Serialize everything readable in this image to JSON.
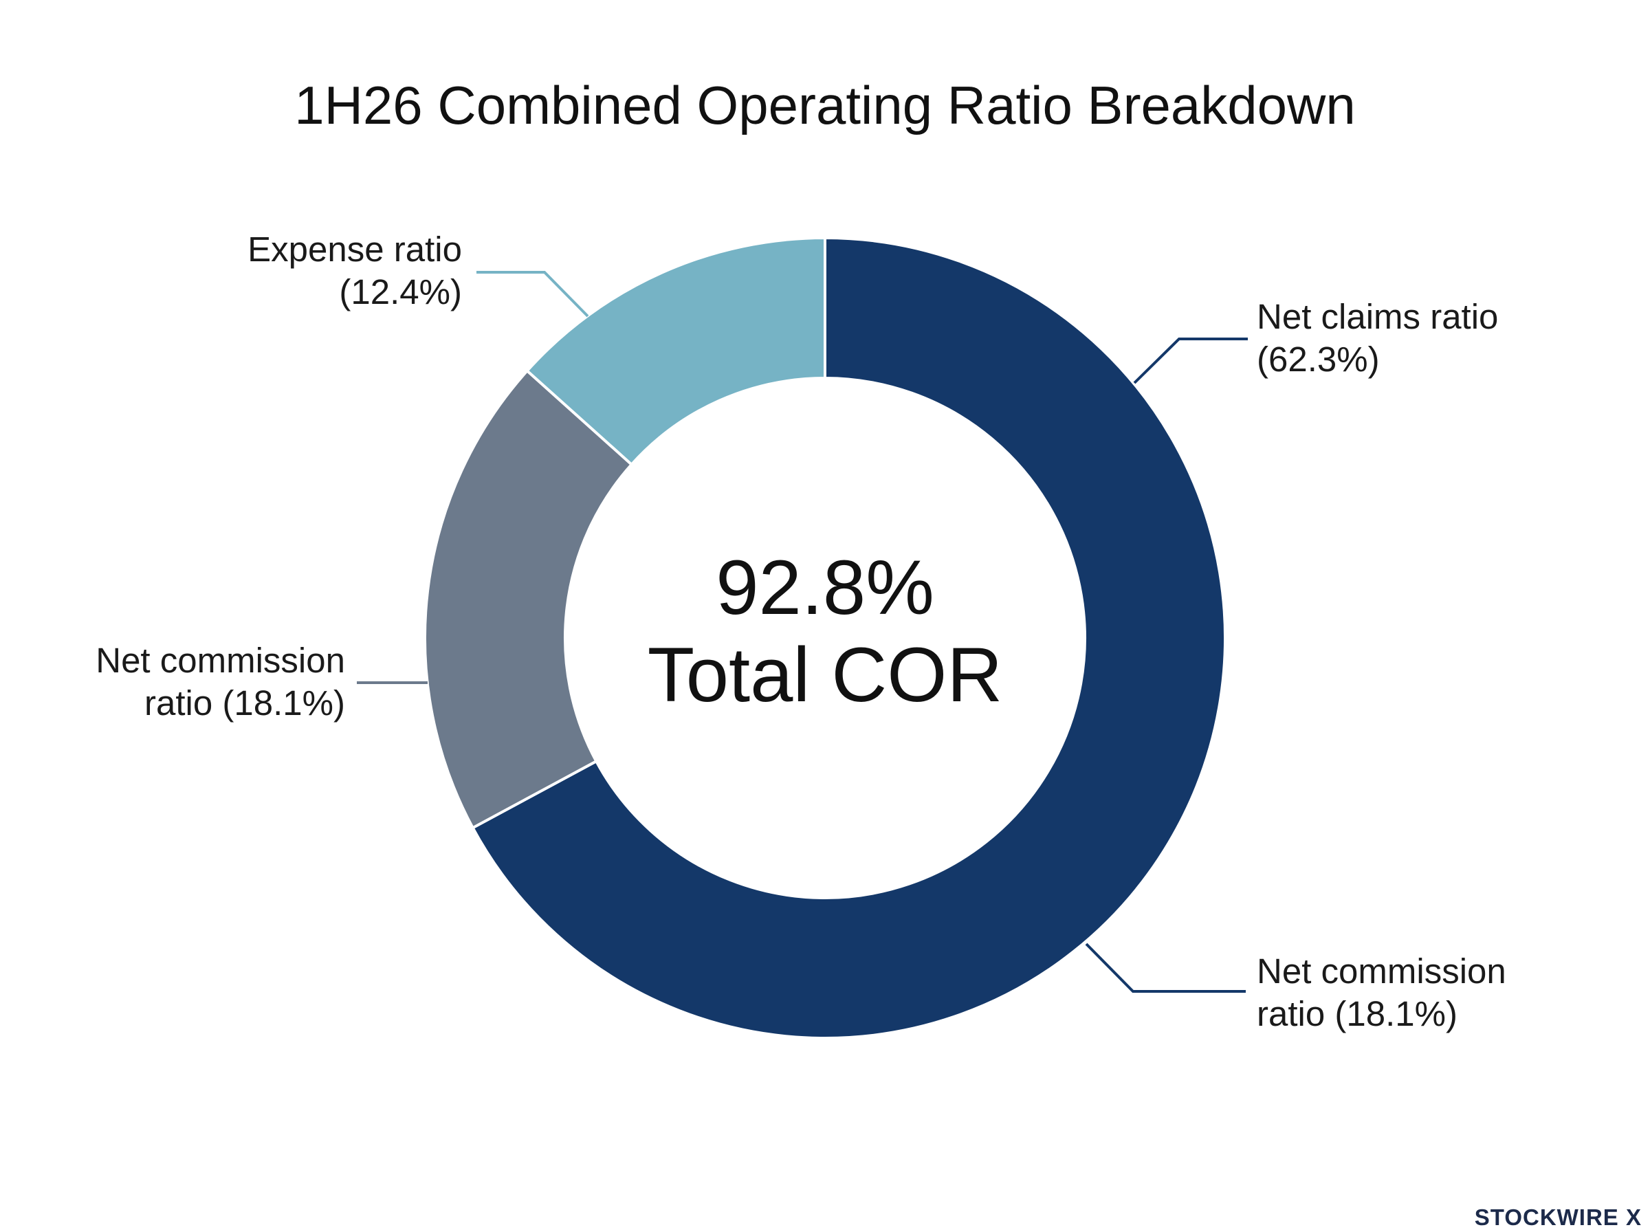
{
  "chart_data": {
    "type": "pie",
    "title": "1H26 Combined Operating Ratio Breakdown",
    "center": {
      "value": "92.8%",
      "label": "Total COR"
    },
    "series": [
      {
        "name": "Net claims ratio",
        "value": 62.3,
        "color": "#143869",
        "label_lines": [
          "Net claims ratio",
          "(62.3%)"
        ]
      },
      {
        "name": "Net commission ratio",
        "value": 18.1,
        "color": "#6c7a8c",
        "label_lines": [
          "Net commission",
          "ratio (18.1%)"
        ]
      },
      {
        "name": "Expense ratio",
        "value": 12.4,
        "color": "#76b3c5",
        "label_lines": [
          "Expense ratio",
          "(12.4%)"
        ]
      }
    ],
    "extra_labels": [
      {
        "label_lines": [
          "Net commission",
          "ratio (18.1%)"
        ]
      }
    ]
  },
  "brand": {
    "name": "STOCKWIRE X"
  }
}
